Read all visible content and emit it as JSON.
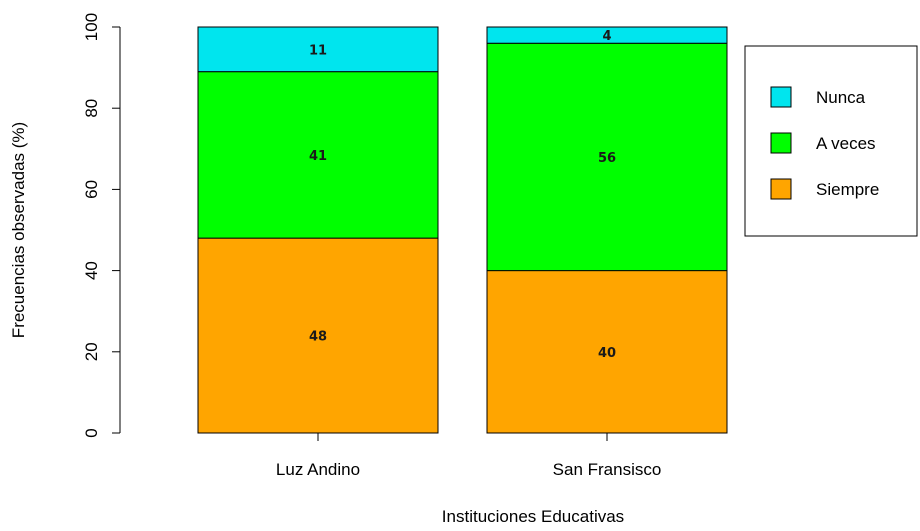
{
  "chart_data": {
    "type": "bar",
    "stacked": true,
    "categories": [
      "Luz Andino",
      "San Fransisco"
    ],
    "series": [
      {
        "name": "Siempre",
        "values": [
          48,
          40
        ],
        "color": "#FFA500"
      },
      {
        "name": "A veces",
        "values": [
          41,
          56
        ],
        "color": "#00FF00"
      },
      {
        "name": "Nunca",
        "values": [
          11,
          4
        ],
        "color": "#00E5EE"
      }
    ],
    "legend_order": [
      "Nunca",
      "A veces",
      "Siempre"
    ],
    "xlabel": "Instituciones Educativas",
    "ylabel": "Frecuencias observadas (%)",
    "ylim": [
      0,
      100
    ],
    "yticks": [
      0,
      20,
      40,
      60,
      80,
      100
    ],
    "legend_position": "right",
    "grid": false
  }
}
